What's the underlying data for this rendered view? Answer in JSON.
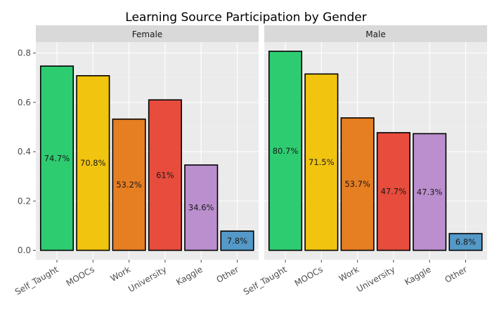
{
  "chart_data": {
    "type": "bar",
    "title": "Learning Source Participation by Gender",
    "xlabel": "",
    "ylabel": "",
    "ylim": [
      0,
      0.8
    ],
    "y_ticks": [
      "0.0",
      "0.2",
      "0.4",
      "0.6",
      "0.8"
    ],
    "y_tick_values": [
      0,
      0.2,
      0.4,
      0.6,
      0.8
    ],
    "grid": true,
    "categories": [
      "Self_Taught",
      "MOOCs",
      "Work",
      "University",
      "Kaggle",
      "Other"
    ],
    "colors": [
      "#2ecc71",
      "#f1c40f",
      "#e67e22",
      "#e74c3c",
      "#bb8fce",
      "#5499c7"
    ],
    "panels": [
      {
        "name": "Female",
        "values": [
          0.747,
          0.708,
          0.532,
          0.61,
          0.346,
          0.078
        ],
        "labels": [
          "74.7%",
          "70.8%",
          "53.2%",
          "61%",
          "34.6%",
          "7.8%"
        ]
      },
      {
        "name": "Male",
        "values": [
          0.807,
          0.715,
          0.537,
          0.477,
          0.473,
          0.068
        ],
        "labels": [
          "80.7%",
          "71.5%",
          "53.7%",
          "47.7%",
          "47.3%",
          "6.8%"
        ]
      }
    ]
  }
}
